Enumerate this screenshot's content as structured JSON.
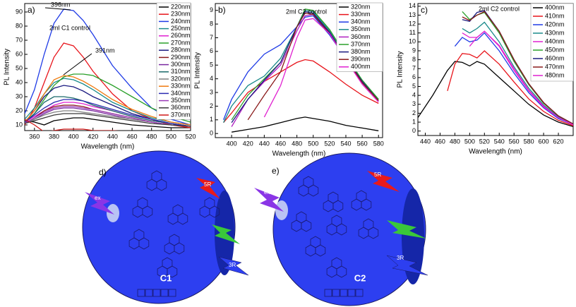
{
  "chart_data": [
    {
      "type": "line",
      "panel": "a)",
      "xlabel": "Wavelength (nm)",
      "ylabel": "PL Intensity",
      "annotations": [
        "396nm",
        "391nm",
        "2ml C1 control"
      ],
      "xlim": [
        350,
        520
      ],
      "xticks": [
        360,
        380,
        400,
        420,
        440,
        460,
        480,
        500,
        520
      ],
      "ylim": [
        6,
        96
      ],
      "yticks": [
        10,
        20,
        30,
        40,
        50,
        60,
        70,
        80,
        90
      ],
      "legend": "upper right",
      "x": [
        350,
        360,
        370,
        380,
        390,
        400,
        410,
        420,
        440,
        460,
        480,
        500,
        520
      ],
      "series": [
        {
          "name": "220nm",
          "color": "#000000",
          "values": [
            13,
            12,
            10,
            13,
            14,
            15,
            15,
            14,
            12,
            10,
            9,
            8,
            8
          ]
        },
        {
          "name": "230nm",
          "color": "#e8141b",
          "values": [
            10,
            22,
            40,
            58,
            68,
            66,
            58,
            48,
            32,
            20,
            14,
            10,
            8
          ]
        },
        {
          "name": "240nm",
          "color": "#1f3be6",
          "values": [
            18,
            35,
            60,
            82,
            92,
            91,
            84,
            74,
            52,
            36,
            22,
            14,
            10
          ]
        },
        {
          "name": "250nm",
          "color": "#1a8a8a",
          "values": [
            14,
            22,
            32,
            40,
            43,
            42,
            39,
            35,
            26,
            20,
            15,
            12,
            10
          ]
        },
        {
          "name": "260nm",
          "color": "#e020d0",
          "values": [
            12,
            16,
            20,
            24,
            26,
            26,
            25,
            23,
            20,
            16,
            13,
            11,
            9
          ]
        },
        {
          "name": "270nm",
          "color": "#2aa02a",
          "values": [
            12,
            18,
            28,
            38,
            44,
            46,
            46,
            45,
            38,
            30,
            22,
            16,
            12
          ]
        },
        {
          "name": "280nm",
          "color": "#1a1a80",
          "values": [
            12,
            20,
            30,
            36,
            38,
            37,
            34,
            30,
            24,
            18,
            14,
            11,
            9
          ]
        },
        {
          "name": "290nm",
          "color": "#8a1a1a",
          "values": [
            11,
            15,
            20,
            23,
            24,
            24,
            23,
            21,
            18,
            15,
            12,
            10,
            9
          ]
        },
        {
          "name": "300nm",
          "color": "#7a2aa0",
          "values": [
            11,
            14,
            18,
            21,
            22,
            22,
            21,
            20,
            17,
            14,
            12,
            10,
            9
          ]
        },
        {
          "name": "310nm",
          "color": "#1a6a6a",
          "values": [
            12,
            18,
            26,
            30,
            30,
            29,
            27,
            24,
            20,
            16,
            13,
            11,
            9
          ]
        },
        {
          "name": "320nm",
          "color": "#808080",
          "values": [
            11,
            14,
            17,
            19,
            20,
            20,
            19,
            18,
            16,
            14,
            12,
            10,
            9
          ]
        },
        {
          "name": "330nm",
          "color": "#f07a10",
          "values": [
            12,
            20,
            32,
            42,
            45,
            44,
            41,
            37,
            28,
            21,
            16,
            12,
            10
          ]
        },
        {
          "name": "340nm",
          "color": "#2a2ab0",
          "values": [
            12,
            17,
            22,
            26,
            28,
            28,
            27,
            25,
            21,
            17,
            14,
            11,
            9
          ]
        },
        {
          "name": "350nm",
          "color": "#9a3ab8",
          "values": [
            11,
            15,
            19,
            22,
            23,
            23,
            22,
            21,
            18,
            15,
            12,
            10,
            9
          ]
        },
        {
          "name": "360nm",
          "color": "#3a3a3a",
          "values": [
            11,
            13,
            15,
            17,
            18,
            18,
            18,
            17,
            15,
            13,
            11,
            10,
            9
          ]
        },
        {
          "name": "370nm",
          "color": "#d01818",
          "values": [
            14,
            10,
            5,
            6,
            7,
            7,
            7,
            6,
            6,
            5,
            4,
            4,
            4
          ]
        }
      ]
    },
    {
      "type": "line",
      "panel": "b)",
      "xlabel": "Wavelength (nm)",
      "ylabel": "PL Intensity",
      "annotations": [
        "2ml C2 control"
      ],
      "xlim": [
        380,
        585
      ],
      "xticks": [
        400,
        420,
        440,
        460,
        480,
        500,
        520,
        540,
        560,
        580
      ],
      "ylim": [
        -0.3,
        9.5
      ],
      "yticks": [
        0,
        1,
        2,
        3,
        4,
        5,
        6,
        7,
        8,
        9
      ],
      "legend": "upper right",
      "x": [
        390,
        400,
        420,
        440,
        460,
        480,
        490,
        500,
        520,
        540,
        560,
        580
      ],
      "series": [
        {
          "name": "320nm",
          "color": "#000000",
          "values": [
            null,
            0.1,
            0.3,
            0.5,
            0.8,
            1.1,
            1.2,
            1.1,
            0.9,
            0.6,
            0.4,
            0.2
          ]
        },
        {
          "name": "330nm",
          "color": "#e8141b",
          "values": [
            0.8,
            1.5,
            3,
            3.8,
            4.5,
            5.2,
            5.4,
            5.3,
            4.5,
            3.6,
            2.8,
            2.2
          ]
        },
        {
          "name": "340nm",
          "color": "#1f3be6",
          "values": [
            1,
            2.5,
            4.5,
            5.8,
            6.5,
            7.8,
            8.5,
            8.6,
            7.2,
            5.5,
            3.8,
            2.5
          ]
        },
        {
          "name": "350nm",
          "color": "#1a8a8a",
          "values": [
            0.8,
            2,
            3.5,
            4.2,
            5.5,
            7.8,
            9,
            8.9,
            7.5,
            5.6,
            3.9,
            2.5
          ]
        },
        {
          "name": "360nm",
          "color": "#b020c0",
          "values": [
            null,
            0.5,
            2.5,
            3.8,
            5,
            7.5,
            8.6,
            8.7,
            7.4,
            5.5,
            3.8,
            2.4
          ]
        },
        {
          "name": "370nm",
          "color": "#2aa02a",
          "values": [
            null,
            1,
            2.8,
            4,
            5.2,
            7.8,
            9.1,
            9,
            7.6,
            5.7,
            3.9,
            2.5
          ]
        },
        {
          "name": "380nm",
          "color": "#1a1a80",
          "values": [
            null,
            0.8,
            2.5,
            3.9,
            5.2,
            7.8,
            8.9,
            8.8,
            7.4,
            5.5,
            3.8,
            2.4
          ]
        },
        {
          "name": "390nm",
          "color": "#8a1a1a",
          "values": [
            null,
            null,
            1,
            2.8,
            4.5,
            7.8,
            8.8,
            8.7,
            7.3,
            5.5,
            3.7,
            2.4
          ]
        },
        {
          "name": "400nm",
          "color": "#e020d0",
          "values": [
            null,
            null,
            null,
            1.2,
            3.5,
            7,
            8.3,
            8.4,
            7.3,
            5.4,
            3.6,
            2.3
          ]
        }
      ]
    },
    {
      "type": "line",
      "panel": "c)",
      "xlabel": "Wavelength (nm)",
      "ylabel": "PL Intensity",
      "annotations": [
        "2ml C2 control"
      ],
      "xlim": [
        430,
        640
      ],
      "xticks": [
        440,
        460,
        480,
        500,
        520,
        540,
        560,
        580,
        600,
        620
      ],
      "ylim": [
        -0.5,
        14.3
      ],
      "yticks": [
        0,
        1,
        2,
        3,
        4,
        5,
        6,
        7,
        8,
        9,
        10,
        11,
        12,
        13,
        14
      ],
      "legend": "upper right",
      "x": [
        430,
        450,
        470,
        480,
        490,
        500,
        510,
        520,
        540,
        560,
        580,
        600,
        620,
        640
      ],
      "series": [
        {
          "name": "400nm",
          "color": "#000000",
          "values": [
            1.5,
            4,
            6.8,
            7.8,
            7.7,
            7.3,
            7.8,
            7.5,
            6,
            4.5,
            3,
            1.8,
            1,
            0.5
          ]
        },
        {
          "name": "410nm",
          "color": "#e8141b",
          "values": [
            null,
            null,
            4.5,
            7.5,
            8.7,
            8.6,
            8.2,
            9,
            7.5,
            5.5,
            3.6,
            2.2,
            1.2,
            0.6
          ]
        },
        {
          "name": "420nm",
          "color": "#1f3be6",
          "values": [
            null,
            null,
            null,
            9.5,
            10.5,
            10,
            10.2,
            11,
            9,
            6.5,
            4.3,
            2.6,
            1.4,
            0.7
          ]
        },
        {
          "name": "430nm",
          "color": "#1a8a8a",
          "values": [
            null,
            null,
            null,
            null,
            11.5,
            11,
            11.5,
            12.2,
            10,
            7.2,
            4.8,
            2.9,
            1.6,
            0.8
          ]
        },
        {
          "name": "440nm",
          "color": "#e020d0",
          "values": [
            null,
            null,
            null,
            null,
            11,
            10.5,
            10.5,
            11.2,
            9.5,
            6.8,
            4.5,
            2.7,
            1.5,
            0.7
          ]
        },
        {
          "name": "450nm",
          "color": "#2aa02a",
          "values": [
            null,
            null,
            null,
            null,
            13.4,
            12.5,
            13,
            13.3,
            11,
            7.8,
            5.2,
            3.1,
            1.7,
            0.8
          ]
        },
        {
          "name": "460nm",
          "color": "#1a1a80",
          "values": [
            null,
            null,
            null,
            null,
            12.5,
            12.3,
            13.3,
            13.5,
            11.2,
            8,
            5.3,
            3.2,
            1.7,
            0.8
          ]
        },
        {
          "name": "470nm",
          "color": "#8a1a1a",
          "values": [
            null,
            null,
            null,
            null,
            12.8,
            12.4,
            13,
            13.4,
            11.2,
            8,
            5.3,
            3.2,
            1.7,
            0.8
          ]
        },
        {
          "name": "480nm",
          "color": "#e020d0",
          "values": [
            null,
            null,
            null,
            null,
            null,
            9.5,
            10.5,
            11.2,
            9.6,
            7,
            4.6,
            2.8,
            1.5,
            0.7
          ]
        }
      ]
    }
  ],
  "diagrams": [
    {
      "panel": "d)",
      "label": "C1",
      "tags": [
        "ex",
        "5R",
        "3R"
      ]
    },
    {
      "panel": "e)",
      "label": "C2",
      "tags": [
        "ex",
        "5R",
        "3R"
      ]
    }
  ]
}
